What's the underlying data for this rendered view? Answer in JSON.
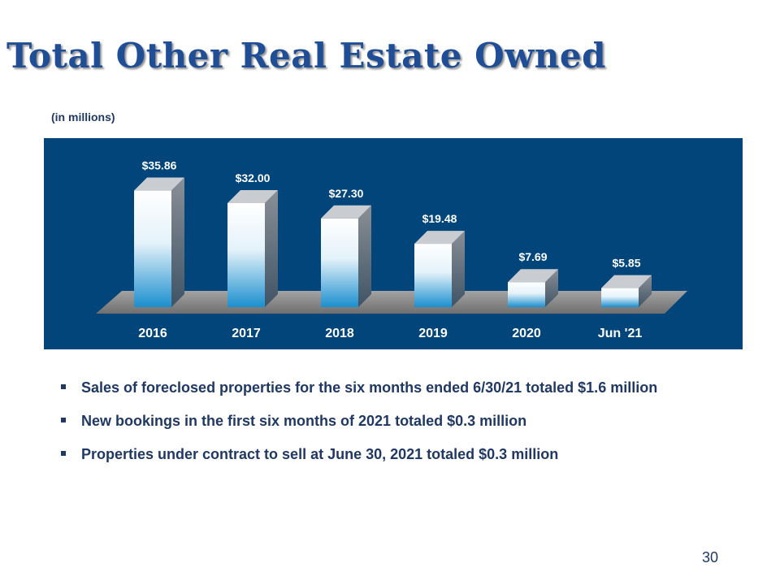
{
  "slide": {
    "title": "Total Other Real Estate Owned",
    "units_note": "(in millions)",
    "page_number": "30"
  },
  "chart_data": {
    "type": "bar",
    "categories": [
      "2016",
      "2017",
      "2018",
      "2019",
      "2020",
      "Jun '21"
    ],
    "values": [
      35.86,
      32.0,
      27.3,
      19.48,
      7.69,
      5.85
    ],
    "data_labels": [
      "$35.86",
      "$32.00",
      "$27.30",
      "$19.48",
      "$7.69",
      "$5.85"
    ],
    "ylim": [
      0,
      40
    ],
    "grid": false,
    "legend": "none",
    "colors": {
      "panel_background": "#02457a",
      "bar_top": "#ffffff",
      "bar_bottom": "#1b8fce",
      "floor": "#8c8c8c"
    }
  },
  "bullets": [
    "Sales of foreclosed properties for the six months ended 6/30/21 totaled $1.6 million",
    "New bookings in the first six months of 2021 totaled $0.3 million",
    "Properties under contract to sell at June 30, 2021 totaled $0.3 million"
  ]
}
